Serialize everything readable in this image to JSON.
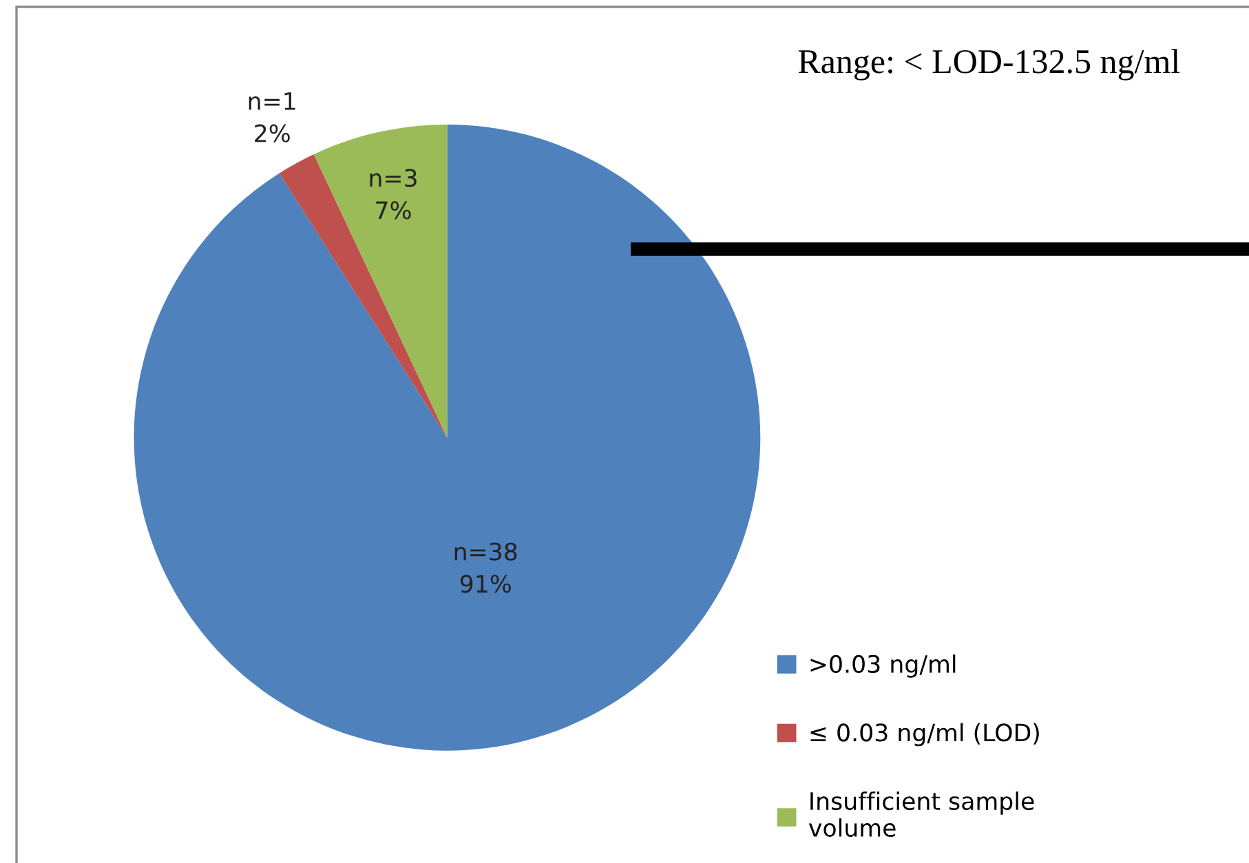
{
  "chart_data": {
    "type": "pie",
    "categories": [
      ">0.03 ng/ml",
      "≤ 0.03 ng/ml (LOD)",
      "Insufficient sample\nvolume"
    ],
    "values": [
      91,
      2,
      7
    ],
    "colors": [
      "#4f81bd",
      "#c0504d",
      "#9bbb59"
    ],
    "value_labels": [
      "n=38\n91%",
      "n=1\n2%",
      "n=3\n7%"
    ],
    "annotations": [
      "Range: < LOD-132.5 ng/ml"
    ],
    "legend": "bottom right"
  }
}
